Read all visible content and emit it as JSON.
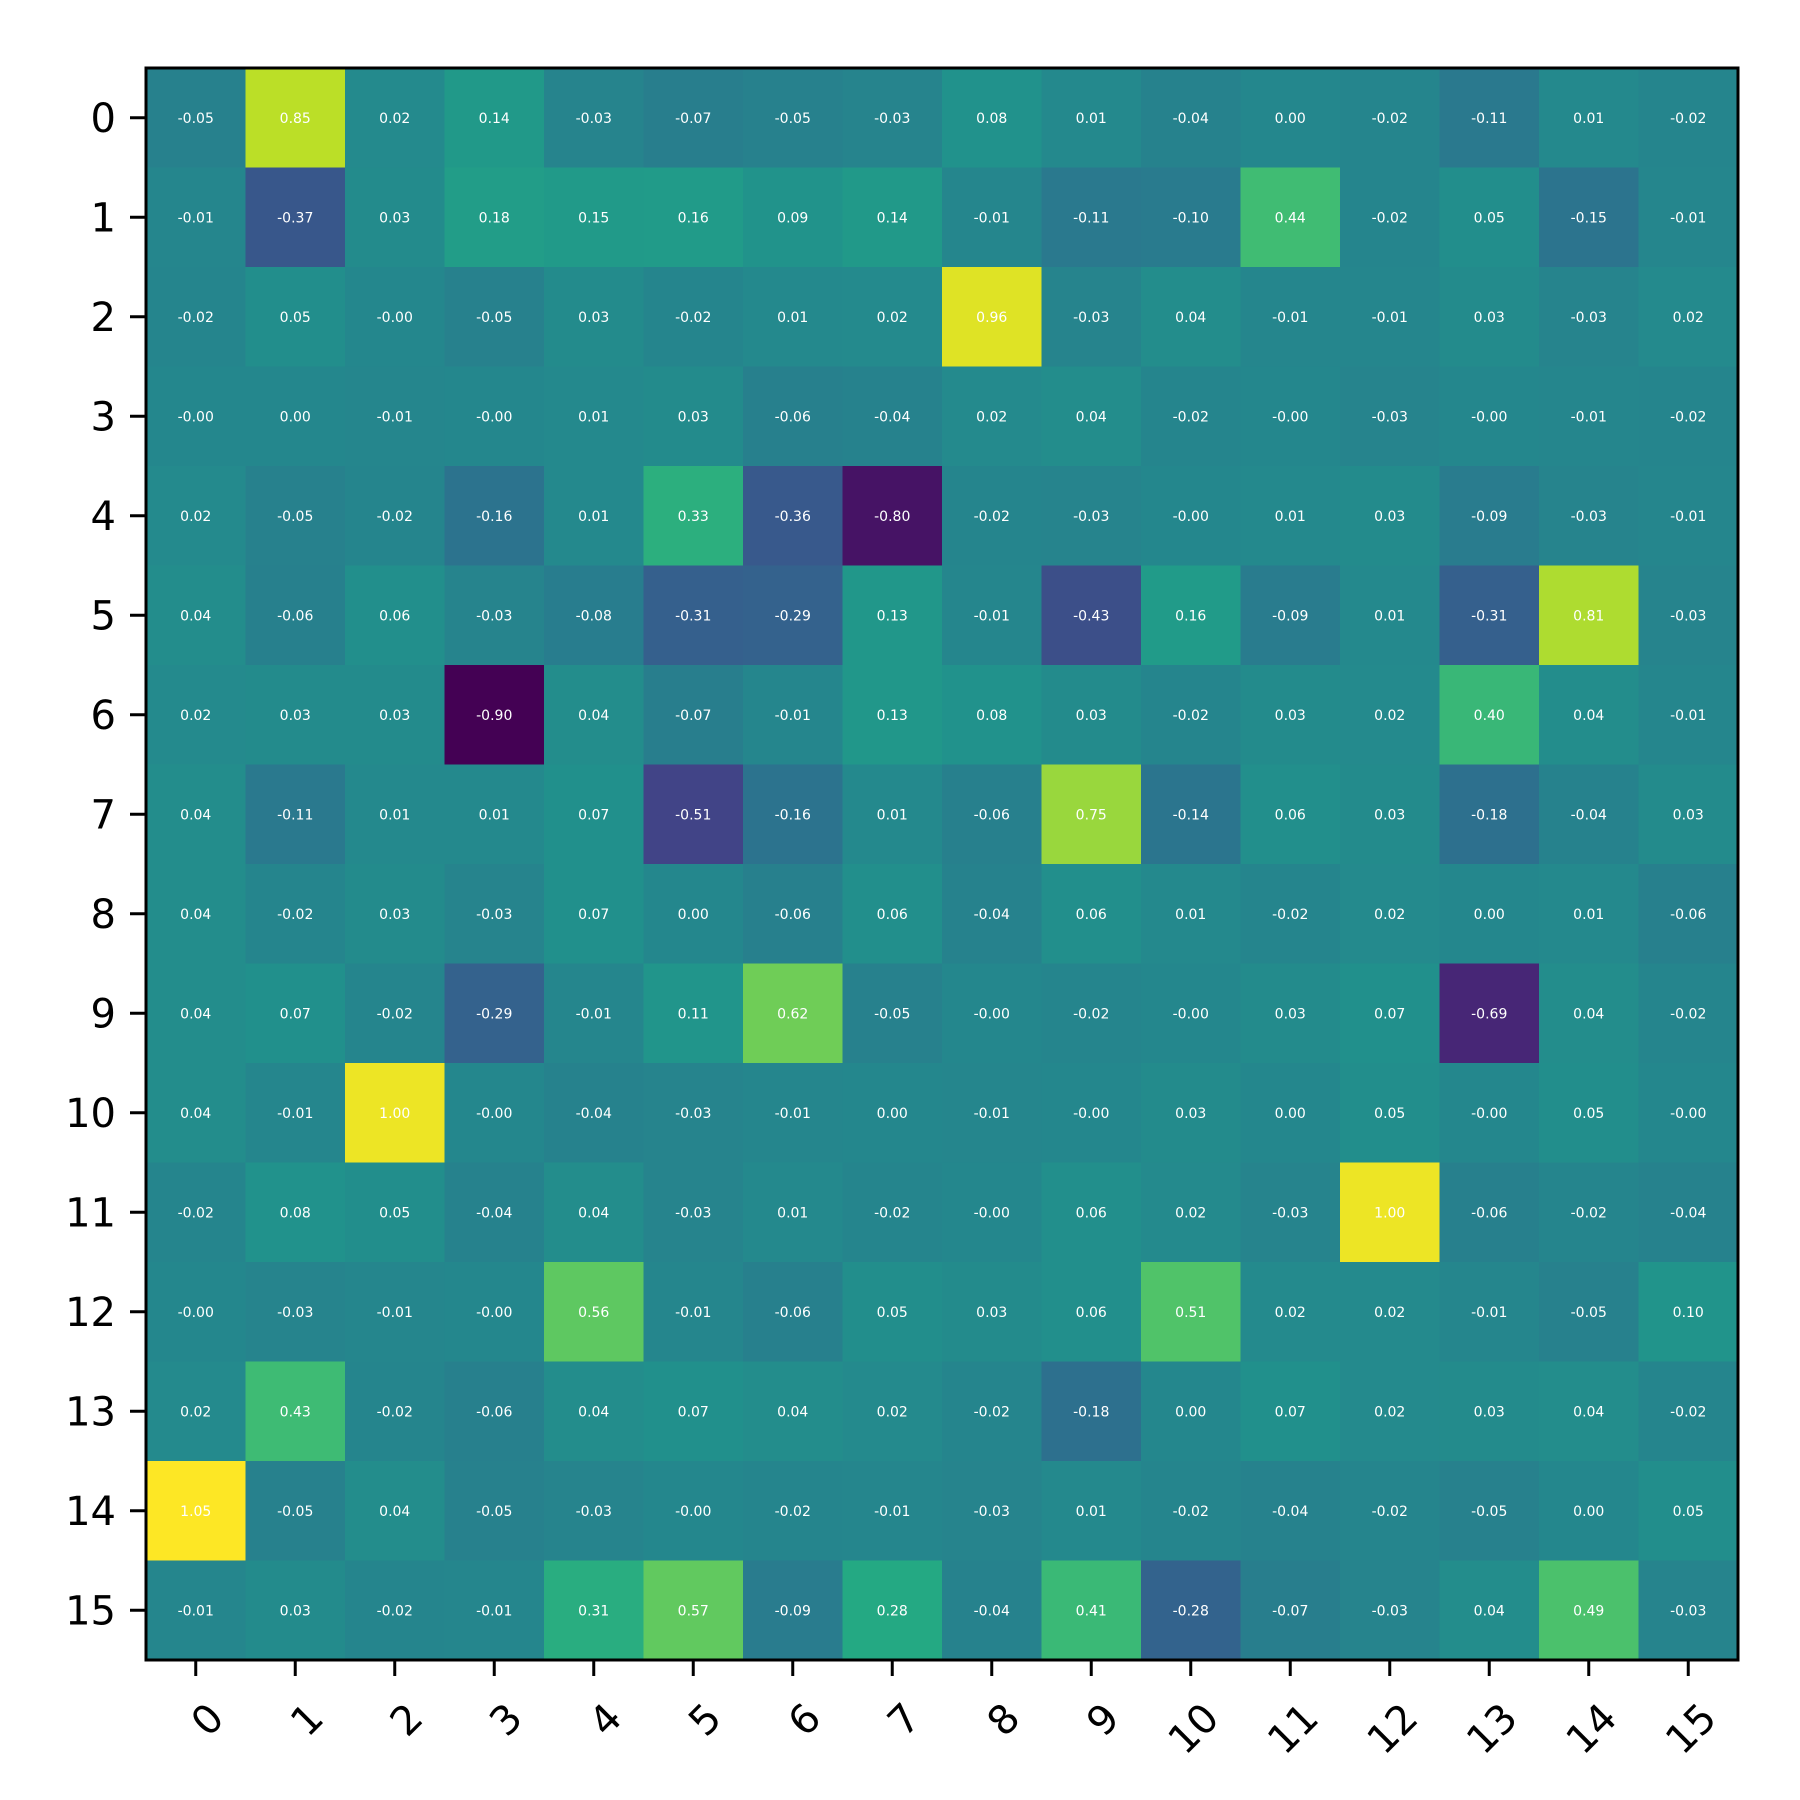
{
  "chart_data": {
    "type": "heatmap",
    "title": "",
    "xlabel": "",
    "ylabel": "",
    "colormap": "viridis",
    "vmin": -0.9,
    "vmax": 1.05,
    "grid": false,
    "legend": "none",
    "x_categories": [
      "0",
      "1",
      "2",
      "3",
      "4",
      "5",
      "6",
      "7",
      "8",
      "9",
      "10",
      "11",
      "12",
      "13",
      "14",
      "15"
    ],
    "y_categories": [
      "0",
      "1",
      "2",
      "3",
      "4",
      "5",
      "6",
      "7",
      "8",
      "9",
      "10",
      "11",
      "12",
      "13",
      "14",
      "15"
    ],
    "values": [
      [
        -0.05,
        0.85,
        0.02,
        0.14,
        -0.03,
        -0.07,
        -0.05,
        -0.03,
        0.08,
        0.01,
        -0.04,
        0.0,
        -0.02,
        -0.11,
        0.01,
        -0.02
      ],
      [
        -0.01,
        -0.37,
        0.03,
        0.18,
        0.15,
        0.16,
        0.09,
        0.14,
        -0.01,
        -0.11,
        -0.1,
        0.44,
        -0.02,
        0.05,
        -0.15,
        -0.01
      ],
      [
        -0.02,
        0.05,
        -0.0,
        -0.05,
        0.03,
        -0.02,
        0.01,
        0.02,
        0.96,
        -0.03,
        0.04,
        -0.01,
        -0.01,
        0.03,
        -0.03,
        0.02
      ],
      [
        -0.0,
        0.0,
        -0.01,
        -0.0,
        0.01,
        0.03,
        -0.06,
        -0.04,
        0.02,
        0.04,
        -0.02,
        -0.0,
        -0.03,
        -0.0,
        -0.01,
        -0.02
      ],
      [
        0.02,
        -0.05,
        -0.02,
        -0.16,
        0.01,
        0.33,
        -0.36,
        -0.8,
        -0.02,
        -0.03,
        -0.0,
        0.01,
        0.03,
        -0.09,
        -0.03,
        -0.01
      ],
      [
        0.04,
        -0.06,
        0.06,
        -0.03,
        -0.08,
        -0.31,
        -0.29,
        0.13,
        -0.01,
        -0.43,
        0.16,
        -0.09,
        0.01,
        -0.31,
        0.81,
        -0.03
      ],
      [
        0.02,
        0.03,
        0.03,
        -0.9,
        0.04,
        -0.07,
        -0.01,
        0.13,
        0.08,
        0.03,
        -0.02,
        0.03,
        0.02,
        0.4,
        0.04,
        -0.01
      ],
      [
        0.04,
        -0.11,
        0.01,
        0.01,
        0.07,
        -0.51,
        -0.16,
        0.01,
        -0.06,
        0.75,
        -0.14,
        0.06,
        0.03,
        -0.18,
        -0.04,
        0.03
      ],
      [
        0.04,
        -0.02,
        0.03,
        -0.03,
        0.07,
        0.0,
        -0.06,
        0.06,
        -0.04,
        0.06,
        0.01,
        -0.02,
        0.02,
        0.0,
        0.01,
        -0.06
      ],
      [
        0.04,
        0.07,
        -0.02,
        -0.29,
        -0.01,
        0.11,
        0.62,
        -0.05,
        -0.0,
        -0.02,
        -0.0,
        0.03,
        0.07,
        -0.69,
        0.04,
        -0.02
      ],
      [
        0.04,
        -0.01,
        1.0,
        -0.0,
        -0.04,
        -0.03,
        -0.01,
        0.0,
        -0.01,
        -0.0,
        0.03,
        0.0,
        0.05,
        -0.0,
        0.05,
        -0.0
      ],
      [
        -0.02,
        0.08,
        0.05,
        -0.04,
        0.04,
        -0.03,
        0.01,
        -0.02,
        -0.0,
        0.06,
        0.02,
        -0.03,
        1.0,
        -0.06,
        -0.02,
        -0.04
      ],
      [
        -0.0,
        -0.03,
        -0.01,
        -0.0,
        0.56,
        -0.01,
        -0.06,
        0.05,
        0.03,
        0.06,
        0.51,
        0.02,
        0.02,
        -0.01,
        -0.05,
        0.1
      ],
      [
        0.02,
        0.43,
        -0.02,
        -0.06,
        0.04,
        0.07,
        0.04,
        0.02,
        -0.02,
        -0.18,
        0.0,
        0.07,
        0.02,
        0.03,
        0.04,
        -0.02
      ],
      [
        1.05,
        -0.05,
        0.04,
        -0.05,
        -0.03,
        -0.0,
        -0.02,
        -0.01,
        -0.03,
        0.01,
        -0.02,
        -0.04,
        -0.02,
        -0.05,
        0.0,
        0.05
      ],
      [
        -0.01,
        0.03,
        -0.02,
        -0.01,
        0.31,
        0.57,
        -0.09,
        0.28,
        -0.04,
        0.41,
        -0.28,
        -0.07,
        -0.03,
        0.04,
        0.49,
        -0.03
      ]
    ]
  }
}
